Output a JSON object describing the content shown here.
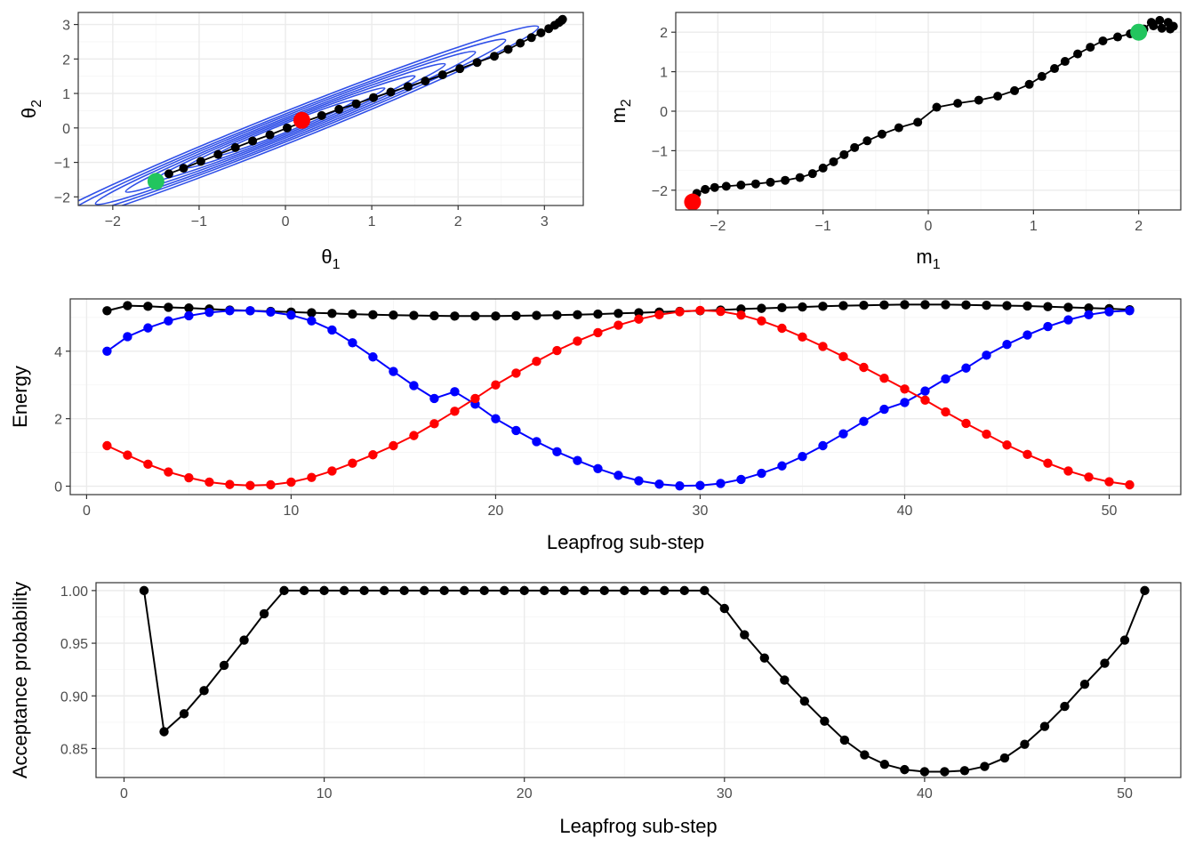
{
  "chart_data": [
    {
      "id": "theta",
      "type": "scatter",
      "xlabel": "θ",
      "xlabel_sub": "1",
      "ylabel": "θ",
      "ylabel_sub": "2",
      "xlim": [
        -2.4,
        3.45
      ],
      "ylim": [
        -2.25,
        3.35
      ],
      "xticks": [
        -2,
        -1,
        0,
        1,
        2,
        3
      ],
      "yticks": [
        -2,
        -1,
        0,
        1,
        2,
        3
      ],
      "grid": true,
      "contour_color": "#3050e8",
      "contours": [
        {
          "rx": 2.93,
          "ry": 0.165
        },
        {
          "rx": 2.55,
          "ry": 0.14
        },
        {
          "rx": 2.2,
          "ry": 0.12
        },
        {
          "rx": 1.85,
          "ry": 0.1
        },
        {
          "rx": 1.5,
          "ry": 0.082
        },
        {
          "rx": 1.15,
          "ry": 0.064
        },
        {
          "rx": 0.8,
          "ry": 0.046
        }
      ],
      "path": [
        [
          -1.35,
          -1.33
        ],
        [
          -1.18,
          -1.17
        ],
        [
          -0.98,
          -0.97
        ],
        [
          -0.78,
          -0.77
        ],
        [
          -0.58,
          -0.57
        ],
        [
          -0.38,
          -0.38
        ],
        [
          -0.18,
          -0.2
        ],
        [
          0.02,
          0.0
        ],
        [
          0.22,
          0.18
        ],
        [
          0.42,
          0.36
        ],
        [
          0.62,
          0.54
        ],
        [
          0.82,
          0.7
        ],
        [
          1.02,
          0.88
        ],
        [
          1.22,
          1.04
        ],
        [
          1.42,
          1.2
        ],
        [
          1.62,
          1.36
        ],
        [
          1.82,
          1.54
        ],
        [
          2.02,
          1.72
        ],
        [
          2.22,
          1.9
        ],
        [
          2.42,
          2.08
        ],
        [
          2.58,
          2.28
        ],
        [
          2.72,
          2.46
        ],
        [
          2.85,
          2.62
        ],
        [
          2.96,
          2.76
        ],
        [
          3.05,
          2.88
        ],
        [
          3.12,
          2.98
        ],
        [
          3.17,
          3.06
        ],
        [
          3.2,
          3.12
        ],
        [
          3.21,
          3.15
        ]
      ],
      "start": {
        "x": -1.5,
        "y": -1.55,
        "color": "#22c55e"
      },
      "end": {
        "x": 0.19,
        "y": 0.22,
        "color": "#ff0000"
      }
    },
    {
      "id": "momentum",
      "type": "scatter",
      "xlabel": "m",
      "xlabel_sub": "1",
      "ylabel": "m",
      "ylabel_sub": "2",
      "xlim": [
        -2.4,
        2.4
      ],
      "ylim": [
        -2.5,
        2.5
      ],
      "xticks": [
        -2,
        -1,
        0,
        1,
        2
      ],
      "yticks": [
        -2,
        -1,
        0,
        1,
        2
      ],
      "grid": true,
      "path": [
        [
          -2.22,
          -2.3
        ],
        [
          -2.24,
          -2.2
        ],
        [
          -2.2,
          -2.08
        ],
        [
          -2.12,
          -1.98
        ],
        [
          -2.03,
          -1.93
        ],
        [
          -1.92,
          -1.9
        ],
        [
          -1.78,
          -1.87
        ],
        [
          -1.64,
          -1.84
        ],
        [
          -1.5,
          -1.8
        ],
        [
          -1.36,
          -1.75
        ],
        [
          -1.22,
          -1.68
        ],
        [
          -1.1,
          -1.58
        ],
        [
          -1.0,
          -1.44
        ],
        [
          -0.9,
          -1.28
        ],
        [
          -0.8,
          -1.1
        ],
        [
          -0.7,
          -0.92
        ],
        [
          -0.58,
          -0.75
        ],
        [
          -0.44,
          -0.58
        ],
        [
          -0.28,
          -0.42
        ],
        [
          -0.1,
          -0.28
        ],
        [
          0.08,
          0.1
        ],
        [
          0.28,
          0.2
        ],
        [
          0.48,
          0.28
        ],
        [
          0.66,
          0.38
        ],
        [
          0.82,
          0.52
        ],
        [
          0.96,
          0.68
        ],
        [
          1.08,
          0.88
        ],
        [
          1.2,
          1.08
        ],
        [
          1.3,
          1.26
        ],
        [
          1.42,
          1.45
        ],
        [
          1.54,
          1.62
        ],
        [
          1.66,
          1.78
        ],
        [
          1.8,
          1.88
        ],
        [
          1.92,
          1.96
        ],
        [
          2.05,
          2.08
        ],
        [
          2.12,
          2.25
        ],
        [
          2.2,
          2.3
        ],
        [
          2.28,
          2.25
        ],
        [
          2.33,
          2.15
        ],
        [
          2.3,
          2.08
        ],
        [
          2.22,
          2.1
        ],
        [
          2.14,
          2.16
        ]
      ],
      "start": {
        "x": 2.0,
        "y": 2.0,
        "color": "#22c55e"
      },
      "end": {
        "x": -2.24,
        "y": -2.3,
        "color": "#ff0000"
      }
    },
    {
      "id": "energy",
      "type": "line",
      "xlabel": "Leapfrog sub-step",
      "ylabel": "Energy",
      "xlim": [
        -0.8,
        53.5
      ],
      "ylim": [
        -0.25,
        5.55
      ],
      "xticks": [
        0,
        10,
        20,
        30,
        40,
        50
      ],
      "yticks": [
        0,
        2,
        4
      ],
      "grid": true,
      "x": [
        1,
        2,
        3,
        4,
        5,
        6,
        7,
        8,
        9,
        10,
        11,
        12,
        13,
        14,
        15,
        16,
        17,
        18,
        19,
        20,
        21,
        22,
        23,
        24,
        25,
        26,
        27,
        28,
        29,
        30,
        31,
        32,
        33,
        34,
        35,
        36,
        37,
        38,
        39,
        40,
        41,
        42,
        43,
        44,
        45,
        46,
        47,
        48,
        49,
        50,
        51
      ],
      "series": [
        {
          "color": "#000000",
          "values": [
            5.2,
            5.35,
            5.33,
            5.3,
            5.28,
            5.25,
            5.22,
            5.2,
            5.18,
            5.16,
            5.14,
            5.12,
            5.1,
            5.08,
            5.07,
            5.06,
            5.05,
            5.04,
            5.04,
            5.04,
            5.05,
            5.06,
            5.07,
            5.08,
            5.1,
            5.12,
            5.14,
            5.16,
            5.18,
            5.2,
            5.22,
            5.25,
            5.27,
            5.29,
            5.31,
            5.33,
            5.35,
            5.36,
            5.37,
            5.38,
            5.38,
            5.38,
            5.37,
            5.36,
            5.35,
            5.34,
            5.32,
            5.3,
            5.28,
            5.26,
            5.23
          ]
        },
        {
          "color": "#0000ff",
          "values": [
            4.0,
            4.43,
            4.69,
            4.9,
            5.05,
            5.15,
            5.2,
            5.2,
            5.16,
            5.07,
            4.9,
            4.63,
            4.25,
            3.83,
            3.4,
            2.98,
            2.6,
            2.8,
            2.43,
            2.0,
            1.65,
            1.32,
            1.02,
            0.76,
            0.52,
            0.32,
            0.16,
            0.06,
            0.01,
            0.02,
            0.08,
            0.2,
            0.38,
            0.6,
            0.88,
            1.2,
            1.55,
            1.92,
            2.28,
            2.48,
            2.82,
            3.18,
            3.5,
            3.88,
            4.2,
            4.48,
            4.73,
            4.93,
            5.08,
            5.17,
            5.2
          ]
        },
        {
          "color": "#ff0000",
          "values": [
            1.2,
            0.92,
            0.65,
            0.42,
            0.25,
            0.12,
            0.05,
            0.02,
            0.04,
            0.12,
            0.26,
            0.45,
            0.68,
            0.93,
            1.2,
            1.5,
            1.85,
            2.22,
            2.6,
            3.0,
            3.35,
            3.7,
            4.02,
            4.3,
            4.55,
            4.77,
            4.95,
            5.08,
            5.17,
            5.21,
            5.18,
            5.07,
            4.9,
            4.68,
            4.42,
            4.14,
            3.84,
            3.52,
            3.2,
            2.88,
            2.55,
            2.2,
            1.86,
            1.54,
            1.22,
            0.94,
            0.68,
            0.45,
            0.27,
            0.13,
            0.04
          ]
        }
      ]
    },
    {
      "id": "acceptance",
      "type": "line",
      "xlabel": "Leapfrog sub-step",
      "ylabel": "Acceptance probability",
      "xlim": [
        -1.4,
        52.8
      ],
      "ylim": [
        0.8225,
        1.0075
      ],
      "xticks": [
        0,
        10,
        20,
        30,
        40,
        50
      ],
      "yticks": [
        0.85,
        0.9,
        0.95,
        1.0
      ],
      "yticklabels": [
        "0.85",
        "0.90",
        "0.95",
        "1.00"
      ],
      "grid": true,
      "x": [
        1,
        2,
        3,
        4,
        5,
        6,
        7,
        8,
        9,
        10,
        11,
        12,
        13,
        14,
        15,
        16,
        17,
        18,
        19,
        20,
        21,
        22,
        23,
        24,
        25,
        26,
        27,
        28,
        29,
        30,
        31,
        32,
        33,
        34,
        35,
        36,
        37,
        38,
        39,
        40,
        41,
        42,
        43,
        44,
        45,
        46,
        47,
        48,
        49,
        50,
        51
      ],
      "series": [
        {
          "color": "#000000",
          "values": [
            1.0,
            0.866,
            0.883,
            0.905,
            0.929,
            0.953,
            0.978,
            1.0,
            1.0,
            1.0,
            1.0,
            1.0,
            1.0,
            1.0,
            1.0,
            1.0,
            1.0,
            1.0,
            1.0,
            1.0,
            1.0,
            1.0,
            1.0,
            1.0,
            1.0,
            1.0,
            1.0,
            1.0,
            1.0,
            0.983,
            0.958,
            0.936,
            0.915,
            0.895,
            0.876,
            0.858,
            0.844,
            0.835,
            0.83,
            0.828,
            0.828,
            0.829,
            0.833,
            0.841,
            0.854,
            0.871,
            0.89,
            0.911,
            0.931,
            0.953,
            1.0
          ]
        }
      ]
    }
  ]
}
